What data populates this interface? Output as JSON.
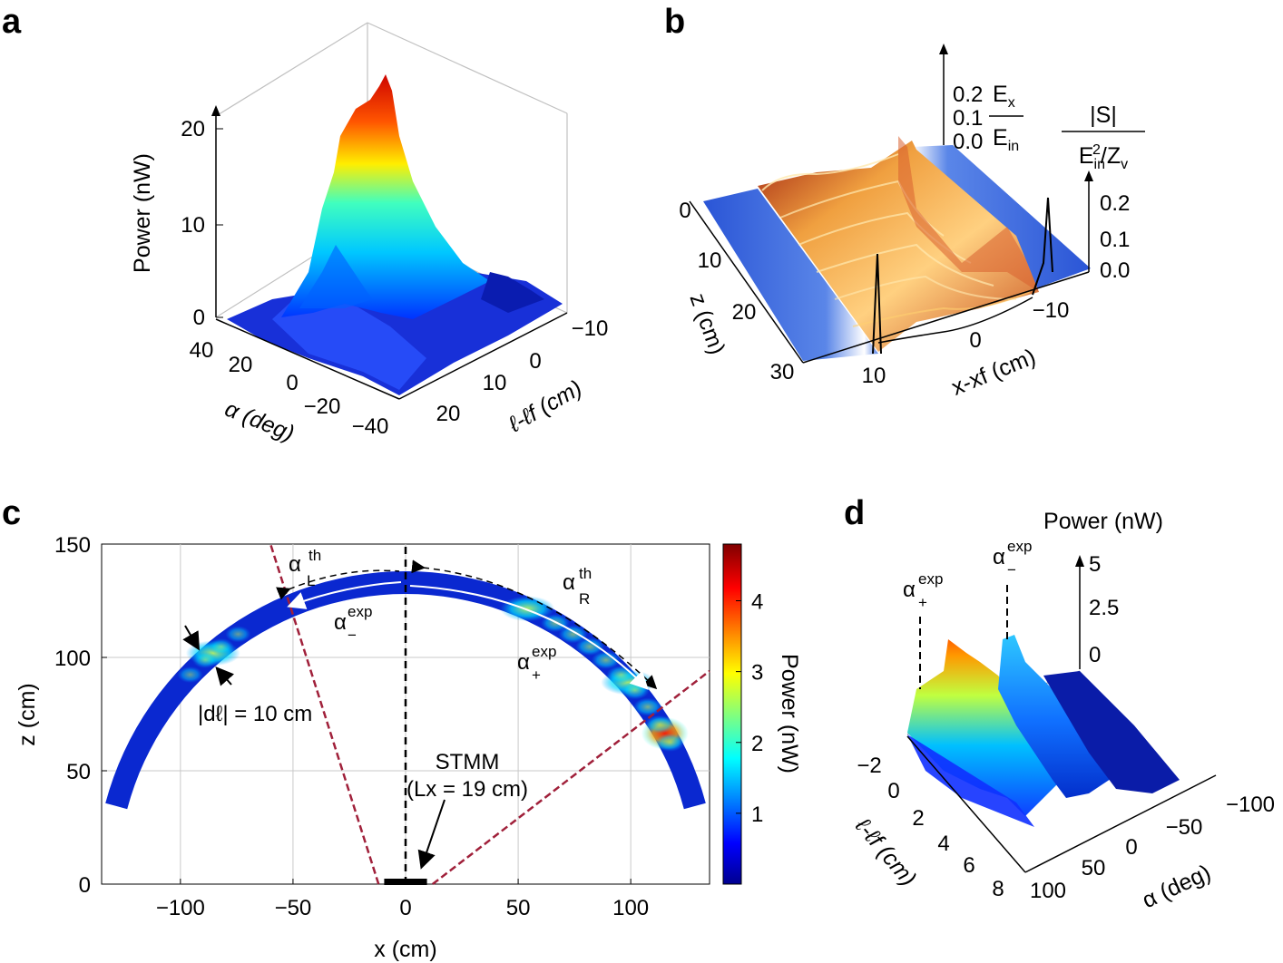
{
  "panels": {
    "a": {
      "label": "a",
      "z_label": "Power (nW)",
      "z_ticks": [
        "0",
        "10",
        "20"
      ],
      "alpha_label": "α (deg)",
      "alpha_ticks": [
        "40",
        "20",
        "0",
        "−20",
        "−40"
      ],
      "l_label": "ℓ-ℓf (cm)",
      "l_ticks": [
        "−10",
        "0",
        "10",
        "20"
      ]
    },
    "b": {
      "label": "b",
      "ex_num": "Ex",
      "ex_den": "Ein",
      "ex_ticks": [
        "0.2",
        "0.1",
        "0.0"
      ],
      "s_num": "|S|",
      "s_den": "Ein2/Zv",
      "s_ticks": [
        "0.2",
        "0.1",
        "0.0"
      ],
      "z_label": "z (cm)",
      "z_ticks": [
        "0",
        "10",
        "20",
        "30"
      ],
      "x_label": "x-xf (cm)",
      "x_ticks": [
        "10",
        "0",
        "−10"
      ]
    },
    "c": {
      "label": "c",
      "annot_alpha_L_th": "αLth",
      "annot_alpha_R_th": "αRth",
      "annot_alpha_minus_exp": "α−exp",
      "annot_alpha_plus_exp": "α+exp",
      "annot_dl": "|dℓ| = 10 cm",
      "annot_stmm": "STMM",
      "annot_lx": "(Lx = 19 cm)",
      "colorbar_label": "Power (nW)",
      "colorbar_ticks": [
        "1",
        "2",
        "3",
        "4"
      ]
    },
    "d": {
      "label": "d",
      "power_label": "Power (nW)",
      "power_ticks": [
        "5",
        "2.5",
        "0"
      ],
      "alpha_plus_label": "α+exp",
      "alpha_minus_label": "α−exp",
      "l_label": "ℓ-ℓf (cm)",
      "l_ticks": [
        "−2",
        "0",
        "2",
        "4",
        "6",
        "8"
      ],
      "alpha_label": "α (deg)",
      "alpha_ticks": [
        "100",
        "50",
        "0",
        "−50",
        "−100"
      ]
    }
  },
  "chart_data": [
    {
      "panel": "a",
      "type": "heatmap",
      "title": "",
      "xlabel": "α (deg)",
      "ylabel": "ℓ-ℓf (cm)",
      "zlabel": "Power (nW)",
      "xlim": [
        -40,
        40
      ],
      "ylim": [
        -10,
        25
      ],
      "zlim": [
        0,
        25
      ],
      "peak": {
        "alpha": 0,
        "l": -2,
        "power": 24
      }
    },
    {
      "panel": "b",
      "type": "heatmap",
      "title": "",
      "xlabel": "x-xf (cm)",
      "ylabel": "z (cm)",
      "zlabel": "Ex/Ein ; |S|/(Ein²/Zv)",
      "xlim": [
        -14,
        14
      ],
      "ylim": [
        0,
        30
      ],
      "zlim": [
        0,
        0.25
      ]
    },
    {
      "panel": "c",
      "type": "heatmap",
      "title": "",
      "xlabel": "x (cm)",
      "ylabel": "z (cm)",
      "xlim": [
        -135,
        135
      ],
      "ylim": [
        0,
        150
      ],
      "x_ticks": [
        -100,
        -50,
        0,
        50,
        100
      ],
      "y_ticks": [
        0,
        50,
        100,
        150
      ],
      "grid": true,
      "colorbar": {
        "label": "Power (nW)",
        "range": [
          0,
          4.8
        ],
        "ticks": [
          1,
          2,
          3,
          4
        ]
      },
      "arc": {
        "inner_radius": 128,
        "outer_radius": 138,
        "theta_start_deg": 15,
        "theta_end_deg": 165
      },
      "stmm": {
        "x_start": -9.5,
        "x_end": 9.5,
        "z": 0
      },
      "dashed_lines": [
        {
          "name": "alpha_L_th",
          "from": [
            -12,
            0
          ],
          "to": [
            -60,
            150
          ]
        },
        {
          "name": "alpha_R_th",
          "from": [
            12,
            0
          ],
          "to": [
            135,
            94
          ]
        },
        {
          "name": "normal",
          "from": [
            0,
            0
          ],
          "to": [
            0,
            150
          ]
        }
      ],
      "hotspots": [
        {
          "angle_deg": 66,
          "power": 2.2
        },
        {
          "angle_deg": 130,
          "power": 1.6
        },
        {
          "angle_deg": 30,
          "power": 4.5
        },
        {
          "angle_deg": 42,
          "power": 2.5
        }
      ]
    },
    {
      "panel": "d",
      "type": "heatmap",
      "title": "",
      "xlabel": "α (deg)",
      "ylabel": "ℓ-ℓf (cm)",
      "zlabel": "Power (nW)",
      "xlim": [
        -100,
        100
      ],
      "ylim": [
        -2,
        8
      ],
      "zlim": [
        0,
        5
      ],
      "z_ticks": [
        0,
        2.5,
        5
      ]
    }
  ]
}
